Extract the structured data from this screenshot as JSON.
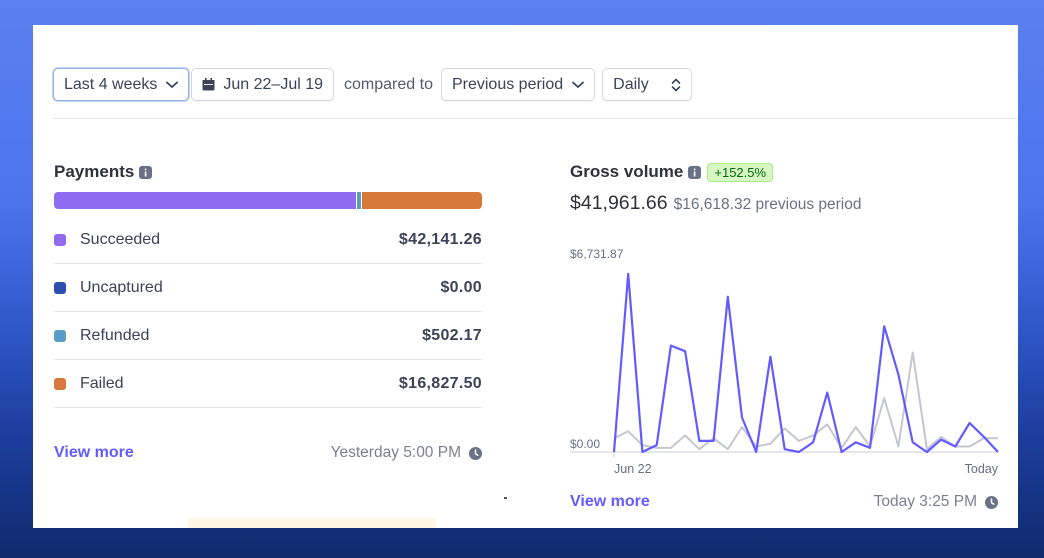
{
  "toolbar": {
    "range_label": "Last 4 weeks",
    "date_range": "Jun 22–Jul 19",
    "compared_to": "compared to",
    "comparison": "Previous period",
    "interval": "Daily"
  },
  "payments": {
    "title": "Payments",
    "rows": [
      {
        "label": "Succeeded",
        "value": "$42,141.26",
        "color": "#8f6bf0"
      },
      {
        "label": "Uncaptured",
        "value": "$0.00",
        "color": "#2a4fb0"
      },
      {
        "label": "Refunded",
        "value": "$502.17",
        "color": "#5a9cc6"
      },
      {
        "label": "Failed",
        "value": "$16,827.50",
        "color": "#d8793c"
      }
    ],
    "bar_fractions": [
      0.7095,
      0.0,
      0.0085,
      0.282
    ],
    "view_more": "View more",
    "updated": "Yesterday 5:00 PM"
  },
  "gross": {
    "title": "Gross volume",
    "change_badge": "+152.5%",
    "amount": "$41,961.66",
    "previous": "$16,618.32 previous period",
    "view_more": "View more",
    "updated": "Today 3:25 PM"
  },
  "chart_data": {
    "type": "line",
    "title": "Gross volume",
    "y_max_label": "$6,731.87",
    "y_min_label": "$0.00",
    "x_start_label": "Jun 22",
    "x_end_label": "Today",
    "ylim": [
      0,
      6731.87
    ],
    "series": [
      {
        "color": "#635bff",
        "values": [
          0,
          6450,
          0,
          250,
          3850,
          3650,
          400,
          400,
          5620,
          1250,
          0,
          3450,
          100,
          0,
          350,
          2150,
          0,
          350,
          150,
          4550,
          2800,
          350,
          0,
          450,
          200,
          1050,
          550,
          0
        ]
      },
      {
        "color": "#c4c7cf",
        "values": [
          500,
          750,
          250,
          150,
          150,
          600,
          100,
          500,
          100,
          900,
          200,
          300,
          850,
          400,
          600,
          1000,
          150,
          900,
          200,
          1950,
          200,
          3600,
          100,
          550,
          200,
          200,
          500,
          500
        ]
      }
    ]
  }
}
